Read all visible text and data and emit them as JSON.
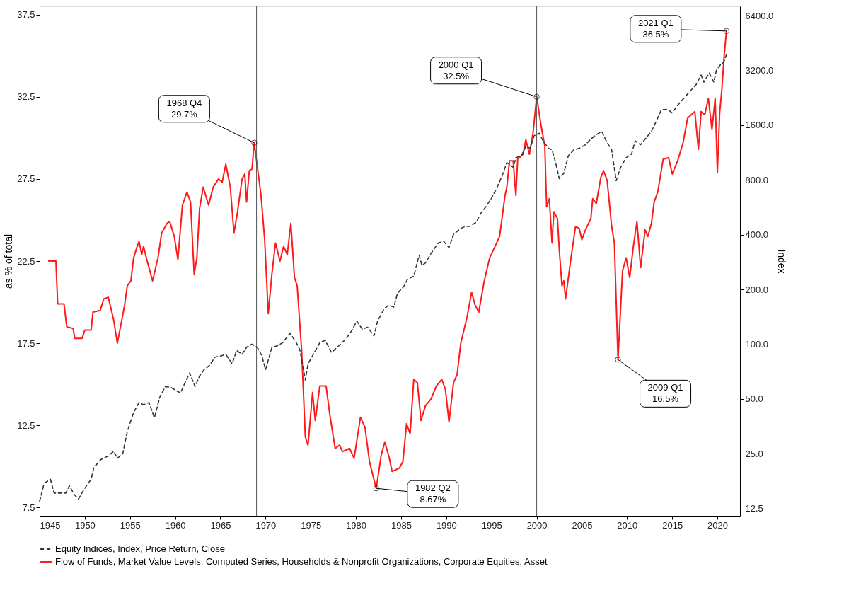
{
  "chart_data": {
    "type": "line",
    "ylabel": "as % of total",
    "y2label": "Index",
    "xlim": [
      1945,
      2022.5
    ],
    "xticks": [
      1945,
      1950,
      1955,
      1960,
      1965,
      1970,
      1975,
      1980,
      1985,
      1990,
      1995,
      2000,
      2005,
      2010,
      2015,
      2020
    ],
    "ylim": [
      7.0,
      38.0
    ],
    "yticks": [
      7.5,
      12.5,
      17.5,
      22.5,
      27.5,
      32.5,
      37.5
    ],
    "y2lim": [
      11.4,
      7200
    ],
    "y2ticks": [
      12.5,
      {
        "value": 25,
        "label": "25.0"
      },
      {
        "value": 50,
        "label": "50.0"
      },
      {
        "value": 100,
        "label": "100.0"
      },
      {
        "value": 200,
        "label": "200.0"
      },
      {
        "value": 400,
        "label": "400.0"
      },
      {
        "value": 800,
        "label": "800.0"
      },
      {
        "value": 1600,
        "label": "1600.0"
      },
      {
        "value": 3200,
        "label": "3200.0"
      },
      {
        "value": 6400,
        "label": "6400.0"
      }
    ],
    "log": "y2",
    "grid": false,
    "legend": "bottom",
    "marker": "none",
    "series": [
      {
        "name": "Equity Indices, Index, Price Return, Close",
        "color": "#333333",
        "axis": "y2",
        "line_style": "dashed",
        "x": [
          1945.0,
          1945.5,
          1946.2,
          1946.6,
          1947.9,
          1948.3,
          1948.8,
          1949.3,
          1949.9,
          1950.7,
          1951.0,
          1951.8,
          1952.6,
          1953.2,
          1953.6,
          1954.2,
          1954.7,
          1955.4,
          1956.0,
          1956.5,
          1957.1,
          1957.7,
          1958.3,
          1958.9,
          1959.5,
          1960.1,
          1960.6,
          1961.0,
          1961.6,
          1962.2,
          1962.7,
          1963.2,
          1963.8,
          1964.4,
          1965.0,
          1965.6,
          1966.3,
          1966.8,
          1967.4,
          1967.9,
          1968.5,
          1969.1,
          1969.6,
          1970.0,
          1970.7,
          1971.3,
          1971.9,
          1972.7,
          1973.4,
          1973.8,
          1974.4,
          1974.7,
          1975.4,
          1976.0,
          1976.6,
          1977.3,
          1978.1,
          1978.9,
          1979.5,
          1980.1,
          1980.7,
          1981.3,
          1982.0,
          1982.4,
          1983.1,
          1983.6,
          1984.2,
          1984.6,
          1985.3,
          1985.7,
          1986.4,
          1987.0,
          1987.3,
          1987.7,
          1988.3,
          1989.1,
          1989.7,
          1990.3,
          1990.8,
          1991.5,
          1992.1,
          1992.6,
          1993.3,
          1993.8,
          1994.4,
          1995.0,
          1995.6,
          1996.2,
          1996.7,
          1997.4,
          1997.7,
          1998.3,
          1998.8,
          1999.3,
          1999.7,
          2000.3,
          2000.7,
          2001.3,
          2001.7,
          2002.1,
          2002.5,
          2003.0,
          2003.5,
          2004.1,
          2004.8,
          2005.4,
          2006.0,
          2006.6,
          2007.2,
          2007.7,
          2008.3,
          2008.8,
          2009.3,
          2009.9,
          2010.5,
          2010.9,
          2011.5,
          2012.0,
          2012.7,
          2013.3,
          2013.8,
          2014.5,
          2015.0,
          2015.6,
          2016.2,
          2017.0,
          2017.6,
          2018.2,
          2018.5,
          2019.1,
          2019.6,
          2019.9,
          2020.3,
          2020.7,
          2021.1
        ],
        "values": [
          13.7,
          17.2,
          18.1,
          15.2,
          15.2,
          16.7,
          15.0,
          14.1,
          15.9,
          18.1,
          21.0,
          23.3,
          24.3,
          25.8,
          23.6,
          25.0,
          33.1,
          42.2,
          47.8,
          46.5,
          47.8,
          39.4,
          51.3,
          58.5,
          58,
          55.6,
          54,
          60.1,
          69.6,
          58.5,
          67,
          72.5,
          76.5,
          85,
          86,
          88,
          78,
          92.4,
          88,
          96.3,
          100,
          96,
          86,
          72.5,
          96,
          98,
          102,
          115,
          102,
          93,
          63.6,
          78,
          90,
          102,
          105,
          90,
          98,
          107,
          118,
          134,
          121,
          124,
          111,
          134,
          156,
          164,
          160,
          191,
          208,
          227,
          237,
          309,
          271,
          280,
          315,
          360,
          368,
          340,
          402,
          430,
          445,
          445,
          468,
          523,
          572,
          635,
          724,
          849,
          996,
          940,
          1060,
          1085,
          1226,
          1195,
          1399,
          1445,
          1314,
          1195,
          1170,
          996,
          814,
          870,
          1085,
          1170,
          1200,
          1250,
          1342,
          1420,
          1480,
          1310,
          1170,
          792,
          940,
          1060,
          1110,
          1310,
          1250,
          1340,
          1480,
          1710,
          1950,
          1950,
          1870,
          2060,
          2225,
          2470,
          2650,
          3020,
          2760,
          3100,
          2760,
          3210,
          3420,
          3550,
          4040
        ]
      },
      {
        "name": "Flow of Funds, Market Value Levels, Computed Series, Households & Nonprofit Organizations, Corporate Equities, Asset",
        "color": "#ff1a1a",
        "axis": "y",
        "line_style": "solid",
        "x": [
          1946.0,
          1946.8,
          1947.0,
          1947.7,
          1948.0,
          1948.7,
          1948.9,
          1949.7,
          1950.0,
          1950.7,
          1950.9,
          1951.7,
          1952.1,
          1952.6,
          1953.2,
          1953.6,
          1954.4,
          1954.7,
          1955.1,
          1955.4,
          1955.8,
          1956.0,
          1956.3,
          1956.5,
          1956.9,
          1957.5,
          1958.1,
          1958.5,
          1959.1,
          1959.4,
          1959.9,
          1960.3,
          1960.8,
          1961.3,
          1961.7,
          1962.1,
          1962.4,
          1962.7,
          1963.1,
          1963.7,
          1964.2,
          1964.8,
          1965.2,
          1965.6,
          1966.1,
          1966.5,
          1966.9,
          1967.4,
          1967.7,
          1967.9,
          1968.2,
          1968.5,
          1968.75,
          1969.5,
          1969.9,
          1970.3,
          1970.7,
          1971.1,
          1971.6,
          1972.0,
          1972.4,
          1972.8,
          1973.2,
          1973.5,
          1974.0,
          1974.4,
          1974.7,
          1975.2,
          1975.5,
          1976.0,
          1976.7,
          1977.1,
          1977.7,
          1978.2,
          1978.5,
          1979.3,
          1979.8,
          1980.5,
          1981.0,
          1981.5,
          1982.0,
          1982.25,
          1982.8,
          1983.2,
          1983.7,
          1984.0,
          1984.8,
          1985.2,
          1985.6,
          1986.0,
          1986.4,
          1986.8,
          1987.2,
          1987.7,
          1988.3,
          1988.9,
          1989.5,
          1989.9,
          1990.3,
          1990.8,
          1991.2,
          1991.6,
          1992.3,
          1992.8,
          1993.2,
          1993.6,
          1994.2,
          1994.8,
          1995.4,
          1995.9,
          1996.5,
          1996.7,
          1997.0,
          1997.4,
          1997.7,
          1997.9,
          1998.5,
          1998.8,
          1999.2,
          1999.6,
          2000.0,
          2000.5,
          2000.9,
          2001.1,
          2001.4,
          2001.7,
          2001.9,
          2002.3,
          2002.5,
          2002.8,
          2003.0,
          2003.2,
          2003.8,
          2004.3,
          2004.7,
          2005.0,
          2005.4,
          2006.0,
          2006.2,
          2006.6,
          2007.1,
          2007.4,
          2007.8,
          2008.3,
          2008.6,
          2009.0,
          2009.5,
          2009.9,
          2010.3,
          2010.7,
          2011.1,
          2011.5,
          2012.0,
          2012.3,
          2012.7,
          2013.0,
          2013.4,
          2014.0,
          2014.6,
          2015.0,
          2015.6,
          2016.2,
          2016.7,
          2017.1,
          2017.5,
          2017.9,
          2018.2,
          2018.6,
          2019.0,
          2019.4,
          2019.75,
          2020.0,
          2020.25,
          2020.5,
          2020.75,
          2021.0
        ],
        "values": [
          22.5,
          22.5,
          19.9,
          19.9,
          18.5,
          18.4,
          17.8,
          17.8,
          18.3,
          18.3,
          19.4,
          19.5,
          20.2,
          20.3,
          18.9,
          17.5,
          19.8,
          21.0,
          21.3,
          22.7,
          23.4,
          23.7,
          22.9,
          23.4,
          22.5,
          21.3,
          22.7,
          24.2,
          24.8,
          24.9,
          24.0,
          22.6,
          25.9,
          26.7,
          26.1,
          21.7,
          22.7,
          25.7,
          27.0,
          25.9,
          27.0,
          27.5,
          27.3,
          28.4,
          27.0,
          24.2,
          25.5,
          27.5,
          27.8,
          26.1,
          28.0,
          28.1,
          29.7,
          26.5,
          23.8,
          19.3,
          21.7,
          23.6,
          22.5,
          23.4,
          22.9,
          24.8,
          21.5,
          21.0,
          17.0,
          11.8,
          11.3,
          14.5,
          12.8,
          14.9,
          14.9,
          13.2,
          11.1,
          11.3,
          10.9,
          11.1,
          10.5,
          13.0,
          12.4,
          10.3,
          9.2,
          8.67,
          10.7,
          11.5,
          10.5,
          9.7,
          9.9,
          10.3,
          12.6,
          12.0,
          15.3,
          15.1,
          12.8,
          13.7,
          14.1,
          14.9,
          15.3,
          14.7,
          12.7,
          15.1,
          15.6,
          17.5,
          19.1,
          20.6,
          19.8,
          19.4,
          21.3,
          22.7,
          23.4,
          24.0,
          26.5,
          27.0,
          28.6,
          28.6,
          26.5,
          28.7,
          29.0,
          29.9,
          29.0,
          30.3,
          32.5,
          30.7,
          29.5,
          25.8,
          26.3,
          23.6,
          25.5,
          25.1,
          23.2,
          21.0,
          21.3,
          20.2,
          22.7,
          24.6,
          24.5,
          23.8,
          24.4,
          25.1,
          26.3,
          26.0,
          27.6,
          28.0,
          27.4,
          24.6,
          23.6,
          16.5,
          21.9,
          22.7,
          21.5,
          23.4,
          24.9,
          22.1,
          24.4,
          24.0,
          24.8,
          26.1,
          26.7,
          28.7,
          28.8,
          27.8,
          28.6,
          29.7,
          31.2,
          31.4,
          31.6,
          29.3,
          31.6,
          31.4,
          32.4,
          30.5,
          32.4,
          27.9,
          31.5,
          33.0,
          35.0,
          36.5
        ]
      }
    ],
    "ref_lines": [
      {
        "axis": "x",
        "value": 1969,
        "color": "#555555"
      },
      {
        "axis": "x",
        "value": 2000,
        "color": "#555555"
      }
    ],
    "annotations": [
      {
        "text": "1968 Q4\n29.7%",
        "x": 1968.75,
        "y": 29.7
      },
      {
        "text": "1982 Q2\n8.67%",
        "x": 1982.25,
        "y": 8.67
      },
      {
        "text": "2000 Q1\n32.5%",
        "x": 2000.0,
        "y": 32.5
      },
      {
        "text": "2009 Q1\n16.5%",
        "x": 2009.0,
        "y": 16.5
      },
      {
        "text": "2021 Q1\n36.5%",
        "x": 2021.0,
        "y": 36.5
      }
    ]
  }
}
